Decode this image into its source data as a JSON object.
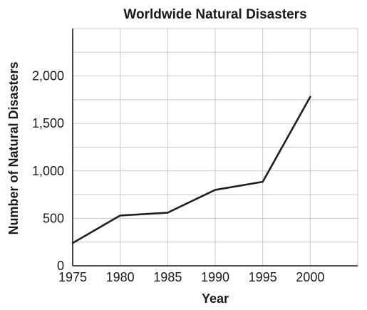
{
  "chart_data": {
    "type": "line",
    "title": "Worldwide Natural Disasters",
    "xlabel": "Year",
    "ylabel": "Number of Natural Disasters",
    "x": [
      1975,
      1980,
      1985,
      1990,
      1995,
      2000
    ],
    "series": [
      {
        "values": [
          240,
          530,
          560,
          800,
          885,
          1780
        ],
        "color": "#231f20"
      }
    ],
    "xlim": [
      1975,
      2005
    ],
    "ylim": [
      0,
      2500
    ],
    "xticks": [
      1975,
      1980,
      1985,
      1990,
      1995,
      2000
    ],
    "yticks": [
      0,
      500,
      1000,
      1500,
      2000
    ],
    "x_tick_labels": [
      "1975",
      "1980",
      "1985",
      "1990",
      "1995",
      "2000"
    ],
    "y_tick_labels": [
      "0",
      "500",
      "1,000",
      "1,500",
      "2,000"
    ],
    "grid": true,
    "legend": "none"
  }
}
